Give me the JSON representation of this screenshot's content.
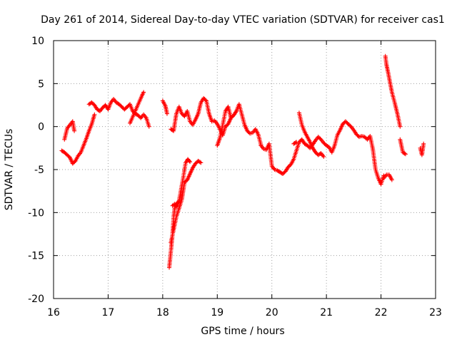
{
  "chart_data": {
    "type": "scatter",
    "title": "Day 261 of 2014, Sidereal Day-to-day VTEC variation (SDTVAR) for receiver cas1",
    "xlabel": "GPS time / hours",
    "ylabel": "SDTVAR / TECUs",
    "xlim": [
      16,
      23
    ],
    "ylim": [
      -20,
      10
    ],
    "xticks": [
      "16",
      "17",
      "18",
      "19",
      "20",
      "21",
      "22",
      "23"
    ],
    "yticks": [
      "-20",
      "-15",
      "-10",
      "-5",
      "0",
      "5",
      "10"
    ],
    "grid": true,
    "marker": "plus",
    "color": "#ff0000",
    "series": [
      {
        "name": "seg1",
        "x": [
          16.15,
          16.2,
          16.25,
          16.3,
          16.35,
          16.4,
          16.45,
          16.5,
          16.55,
          16.6,
          16.65,
          16.7,
          16.75
        ],
        "y": [
          -2.8,
          -3.0,
          -3.3,
          -3.6,
          -4.3,
          -4.0,
          -3.4,
          -3.0,
          -2.2,
          -1.4,
          -0.5,
          0.3,
          1.4
        ]
      },
      {
        "name": "seg2",
        "x": [
          16.2,
          16.25,
          16.3,
          16.35,
          16.38
        ],
        "y": [
          -1.5,
          -0.2,
          0.2,
          0.6,
          -0.5
        ]
      },
      {
        "name": "seg3",
        "x": [
          16.65,
          16.7,
          16.75,
          16.8,
          16.85,
          16.9,
          16.95,
          17.0,
          17.05,
          17.1,
          17.15,
          17.2,
          17.25,
          17.3,
          17.35,
          17.4,
          17.45,
          17.5,
          17.55,
          17.6,
          17.65,
          17.7,
          17.75
        ],
        "y": [
          2.6,
          2.8,
          2.5,
          2.0,
          1.8,
          2.2,
          2.5,
          2.0,
          2.8,
          3.2,
          2.8,
          2.6,
          2.3,
          2.0,
          2.3,
          2.6,
          1.8,
          1.5,
          1.3,
          1.0,
          1.4,
          1.0,
          0.0
        ]
      },
      {
        "name": "seg4",
        "x": [
          17.4,
          17.62,
          17.65
        ],
        "y": [
          0.4,
          3.6,
          4.0
        ]
      },
      {
        "name": "seg5",
        "x": [
          18.0,
          18.05,
          18.08
        ],
        "y": [
          3.0,
          2.4,
          1.5
        ]
      },
      {
        "name": "seg6",
        "x": [
          18.12,
          18.15,
          18.18,
          18.2,
          18.22,
          18.25,
          18.28
        ],
        "y": [
          -16.4,
          -14.5,
          -12.5,
          -10.5,
          -9.5,
          -9.0,
          -8.8
        ]
      },
      {
        "name": "seg7",
        "x": [
          18.15,
          18.2,
          18.25,
          18.3,
          18.35,
          18.4,
          18.45,
          18.5,
          18.55,
          18.6,
          18.65,
          18.7
        ],
        "y": [
          -13.5,
          -12.0,
          -10.5,
          -9.5,
          -8.5,
          -6.5,
          -6.2,
          -5.5,
          -4.8,
          -4.3,
          -4.0,
          -4.2
        ]
      },
      {
        "name": "seg8",
        "x": [
          18.18,
          18.22,
          18.26,
          18.3,
          18.34,
          18.38,
          18.42,
          18.46,
          18.5
        ],
        "y": [
          -9.2,
          -9.0,
          -9.3,
          -8.6,
          -7.2,
          -5.8,
          -4.2,
          -3.8,
          -4.1
        ]
      },
      {
        "name": "seg9",
        "x": [
          18.15,
          18.2,
          18.25,
          18.3,
          18.35,
          18.4,
          18.45,
          18.5,
          18.55,
          18.6,
          18.65,
          18.7,
          18.75,
          18.8,
          18.85,
          18.9,
          18.95,
          19.0,
          19.05,
          19.1,
          19.15,
          19.2,
          19.25,
          19.3,
          19.35,
          19.4,
          19.45,
          19.5,
          19.55,
          19.6,
          19.65,
          19.7,
          19.75,
          19.8
        ],
        "y": [
          -0.3,
          -0.5,
          1.5,
          2.3,
          1.5,
          1.2,
          1.8,
          0.6,
          0.2,
          0.8,
          1.5,
          2.8,
          3.3,
          3.0,
          1.5,
          0.6,
          0.7,
          0.3,
          -0.3,
          -1.0,
          0.0,
          0.3,
          1.0,
          1.3,
          1.8,
          2.6,
          1.4,
          0.2,
          -0.5,
          -0.8,
          -0.7,
          -0.3,
          -0.9,
          -2.1
        ]
      },
      {
        "name": "seg10",
        "x": [
          19.0,
          19.05,
          19.1,
          19.15,
          19.2,
          19.25
        ],
        "y": [
          -2.2,
          -1.3,
          0.2,
          1.8,
          2.3,
          1.0
        ]
      },
      {
        "name": "seg11",
        "x": [
          19.8,
          19.85,
          19.9,
          19.95,
          20.0,
          20.05,
          20.1,
          20.15,
          20.2,
          20.25,
          20.3,
          20.35,
          20.4,
          20.45,
          20.5,
          20.55,
          20.6,
          20.65,
          20.7,
          20.75,
          20.8,
          20.85,
          20.9,
          20.95,
          21.0,
          21.05,
          21.1,
          21.15,
          21.2,
          21.25,
          21.3,
          21.35,
          21.4,
          21.45,
          21.5,
          21.55,
          21.6,
          21.65,
          21.7,
          21.75,
          21.8,
          21.85,
          21.9,
          21.95,
          22.0,
          22.05
        ],
        "y": [
          -2.2,
          -2.6,
          -2.7,
          -2.0,
          -4.6,
          -5.0,
          -5.1,
          -5.3,
          -5.5,
          -5.2,
          -4.7,
          -4.4,
          -3.8,
          -2.8,
          -1.8,
          -1.5,
          -2.0,
          -2.2,
          -2.5,
          -2.1,
          -1.6,
          -1.2,
          -1.5,
          -1.9,
          -2.2,
          -2.4,
          -3.0,
          -2.2,
          -1.0,
          -0.4,
          0.3,
          0.6,
          0.3,
          0.0,
          -0.4,
          -0.9,
          -1.2,
          -1.1,
          -1.2,
          -1.5,
          -1.1,
          -2.6,
          -5.0,
          -6.0,
          -6.7,
          -5.7
        ]
      },
      {
        "name": "seg12",
        "x": [
          20.5,
          20.55,
          20.6,
          20.65,
          20.7,
          20.75,
          20.8,
          20.85,
          20.9,
          20.95
        ],
        "y": [
          1.6,
          0.2,
          -0.6,
          -1.2,
          -1.8,
          -2.5,
          -3.0,
          -3.3,
          -3.1,
          -3.5
        ]
      },
      {
        "name": "seg13",
        "x": [
          20.4,
          20.45
        ],
        "y": [
          -2.0,
          -1.8
        ]
      },
      {
        "name": "seg14",
        "x": [
          22.08,
          22.1,
          22.13,
          22.16,
          22.2,
          22.25,
          22.3,
          22.35
        ],
        "y": [
          8.2,
          7.2,
          6.3,
          5.3,
          4.0,
          2.8,
          1.5,
          0.0
        ]
      },
      {
        "name": "seg15",
        "x": [
          22.35,
          22.4,
          22.45
        ],
        "y": [
          -1.5,
          -3.0,
          -3.2
        ]
      },
      {
        "name": "seg16",
        "x": [
          22.05,
          22.1,
          22.15,
          22.2
        ],
        "y": [
          -6.0,
          -5.6,
          -5.6,
          -6.2
        ]
      },
      {
        "name": "seg17",
        "x": [
          22.72,
          22.75,
          22.78
        ],
        "y": [
          -2.5,
          -3.3,
          -2.0
        ]
      }
    ]
  }
}
